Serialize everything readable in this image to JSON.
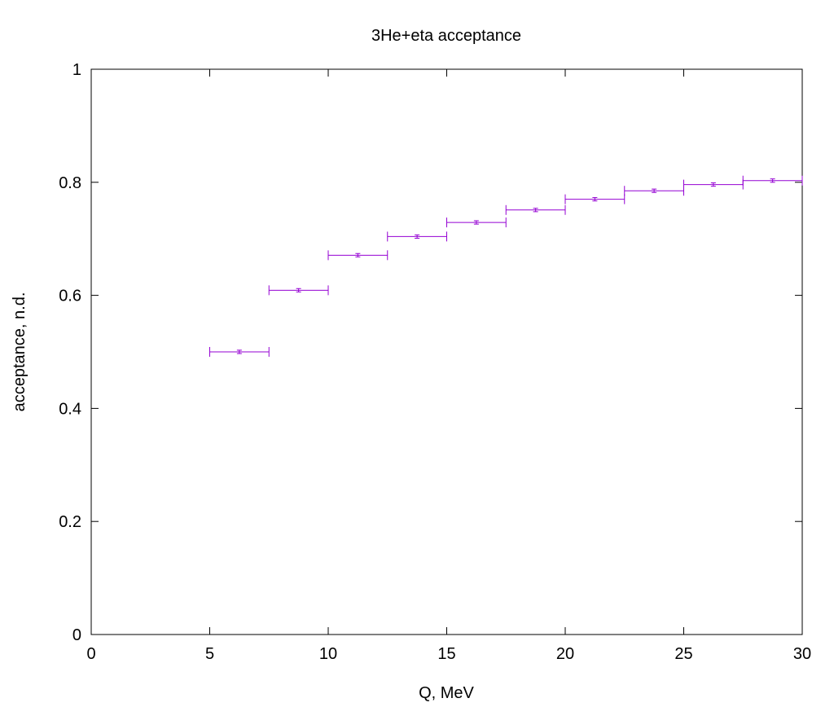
{
  "chart_data": {
    "type": "scatter",
    "title": "3He+eta acceptance",
    "xlabel": "Q, MeV",
    "ylabel": "acceptance, n.d.",
    "xlim": [
      0,
      30
    ],
    "ylim": [
      0,
      1
    ],
    "x_ticks": [
      0,
      5,
      10,
      15,
      20,
      25,
      30
    ],
    "y_ticks": [
      0,
      0.2,
      0.4,
      0.6,
      0.8,
      1
    ],
    "x_tick_labels": [
      "0",
      "5",
      "10",
      "15",
      "20",
      "25",
      "30"
    ],
    "y_tick_labels": [
      "0",
      "0.2",
      "0.4",
      "0.6",
      "0.8",
      "1"
    ],
    "grid": false,
    "color": "#9400d3",
    "error_bars": "x and y",
    "points": [
      {
        "x": 6.25,
        "y": 0.5,
        "xerr": 1.25,
        "yerr": 0.003
      },
      {
        "x": 8.75,
        "y": 0.609,
        "xerr": 1.25,
        "yerr": 0.003
      },
      {
        "x": 11.25,
        "y": 0.671,
        "xerr": 1.25,
        "yerr": 0.003
      },
      {
        "x": 13.75,
        "y": 0.704,
        "xerr": 1.25,
        "yerr": 0.003
      },
      {
        "x": 16.25,
        "y": 0.729,
        "xerr": 1.25,
        "yerr": 0.003
      },
      {
        "x": 18.75,
        "y": 0.751,
        "xerr": 1.25,
        "yerr": 0.003
      },
      {
        "x": 21.25,
        "y": 0.77,
        "xerr": 1.25,
        "yerr": 0.003
      },
      {
        "x": 23.75,
        "y": 0.785,
        "xerr": 1.25,
        "yerr": 0.003
      },
      {
        "x": 26.25,
        "y": 0.796,
        "xerr": 1.25,
        "yerr": 0.003
      },
      {
        "x": 28.75,
        "y": 0.803,
        "xerr": 1.25,
        "yerr": 0.003
      }
    ]
  }
}
